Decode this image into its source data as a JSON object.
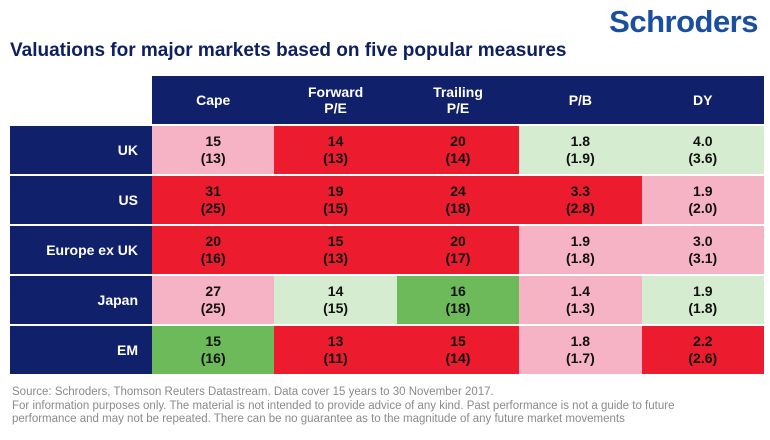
{
  "brand": "Schroders",
  "chart_data": {
    "type": "table",
    "title": "Valuations for major markets based on five popular measures",
    "columns": [
      {
        "line1": "Cape",
        "line2": ""
      },
      {
        "line1": "Forward",
        "line2": "P/E"
      },
      {
        "line1": "Trailing",
        "line2": "P/E"
      },
      {
        "line1": "P/B",
        "line2": ""
      },
      {
        "line1": "DY",
        "line2": ""
      }
    ],
    "rows": [
      {
        "label": "UK",
        "cells": [
          {
            "value": "15",
            "avg": "(13)",
            "color": "#f7b3c6"
          },
          {
            "value": "14",
            "avg": "(13)",
            "color": "#ec1c2e"
          },
          {
            "value": "20",
            "avg": "(14)",
            "color": "#ec1c2e"
          },
          {
            "value": "1.8",
            "avg": "(1.9)",
            "color": "#d6ecd0"
          },
          {
            "value": "4.0",
            "avg": "(3.6)",
            "color": "#d6ecd0"
          }
        ]
      },
      {
        "label": "US",
        "cells": [
          {
            "value": "31",
            "avg": "(25)",
            "color": "#ec1c2e"
          },
          {
            "value": "19",
            "avg": "(15)",
            "color": "#ec1c2e"
          },
          {
            "value": "24",
            "avg": "(18)",
            "color": "#ec1c2e"
          },
          {
            "value": "3.3",
            "avg": "(2.8)",
            "color": "#ec1c2e"
          },
          {
            "value": "1.9",
            "avg": "(2.0)",
            "color": "#f7b3c6"
          }
        ]
      },
      {
        "label": "Europe ex UK",
        "cells": [
          {
            "value": "20",
            "avg": "(16)",
            "color": "#ec1c2e"
          },
          {
            "value": "15",
            "avg": "(13)",
            "color": "#ec1c2e"
          },
          {
            "value": "20",
            "avg": "(17)",
            "color": "#ec1c2e"
          },
          {
            "value": "1.9",
            "avg": "(1.8)",
            "color": "#f7b3c6"
          },
          {
            "value": "3.0",
            "avg": "(3.1)",
            "color": "#f7b3c6"
          }
        ]
      },
      {
        "label": "Japan",
        "cells": [
          {
            "value": "27",
            "avg": "(25)",
            "color": "#f7b3c6"
          },
          {
            "value": "14",
            "avg": "(15)",
            "color": "#d6ecd0"
          },
          {
            "value": "16",
            "avg": "(18)",
            "color": "#6dba5a"
          },
          {
            "value": "1.4",
            "avg": "(1.3)",
            "color": "#f7b3c6"
          },
          {
            "value": "1.9",
            "avg": "(1.8)",
            "color": "#d6ecd0"
          }
        ]
      },
      {
        "label": "EM",
        "cells": [
          {
            "value": "15",
            "avg": "(16)",
            "color": "#6dba5a"
          },
          {
            "value": "13",
            "avg": "(11)",
            "color": "#ec1c2e"
          },
          {
            "value": "15",
            "avg": "(14)",
            "color": "#ec1c2e"
          },
          {
            "value": "1.8",
            "avg": "(1.7)",
            "color": "#f7b3c6"
          },
          {
            "value": "2.2",
            "avg": "(2.6)",
            "color": "#ec1c2e"
          }
        ]
      }
    ]
  },
  "footnote": {
    "line1": "Source: Schroders, Thomson Reuters Datastream. Data cover 15 years to 30 November 2017.",
    "line2": "For information purposes only. The material is not intended to provide advice of any kind. Past performance is not a guide to future",
    "line3": "performance and may not be repeated. There can be no guarantee as to the magnitude of any future market movements"
  }
}
